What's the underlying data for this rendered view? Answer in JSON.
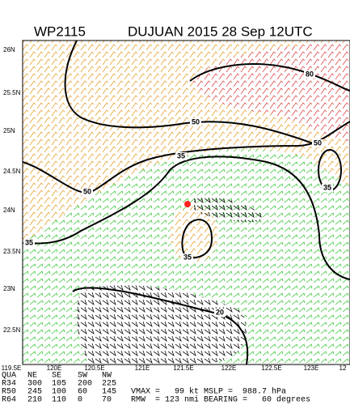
{
  "header": {
    "storm_id": "WP2115",
    "title": "DUJUAN 2015 28 Sep 12UTC"
  },
  "lat_labels": [
    "26N",
    "25.5N",
    "25N",
    "24.5N",
    "24N",
    "23.5N",
    "23N",
    "22.5N"
  ],
  "lon_labels": [
    "119.5E",
    "120E",
    "120.5E",
    "121E",
    "121.5E",
    "122E",
    "122.5E",
    "123E",
    "12"
  ],
  "contour_labels": [
    "80",
    "50",
    "50",
    "50",
    "35",
    "35",
    "35",
    "35",
    "20"
  ],
  "table": {
    "header": [
      "QUA",
      "NE",
      "SE",
      "SW",
      "NW"
    ],
    "rows": [
      [
        "R34",
        "300",
        "105",
        "200",
        "225"
      ],
      [
        "R50",
        "245",
        "100",
        "60",
        "145"
      ],
      [
        "R64",
        "210",
        "110",
        "0",
        "70"
      ]
    ]
  },
  "stats": [
    "VMAX =   99 kt MSLP =  988.7 hPa",
    "RMW  = 123 nmi BEARING =   60 degrees"
  ]
}
